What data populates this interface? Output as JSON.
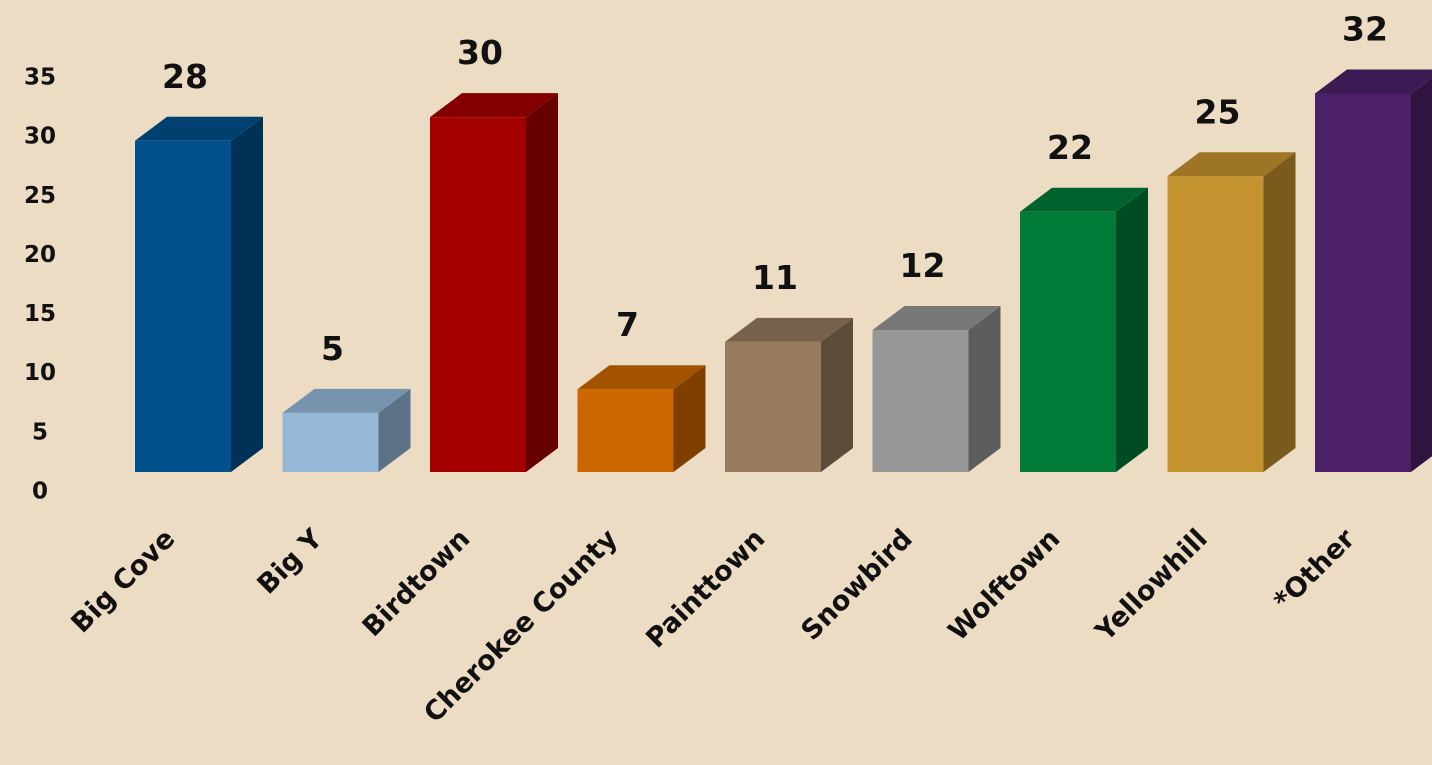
{
  "chart_data": {
    "type": "bar3d",
    "categories": [
      "Big Cove",
      "Big Y",
      "Birdtown",
      "Cherokee County",
      "Painttown",
      "Snowbird",
      "Wolftown",
      "Yellowhill",
      "*Other"
    ],
    "values": [
      28,
      5,
      30,
      7,
      11,
      12,
      22,
      25,
      32
    ],
    "colors": [
      "#00508c",
      "#95b8d8",
      "#a50000",
      "#cc6600",
      "#967b5e",
      "#969696",
      "#007a37",
      "#c4922e",
      "#4b2068"
    ],
    "ylim": [
      0,
      35
    ],
    "yticks": [
      0,
      5,
      10,
      15,
      20,
      25,
      30,
      35
    ],
    "grid": false
  }
}
